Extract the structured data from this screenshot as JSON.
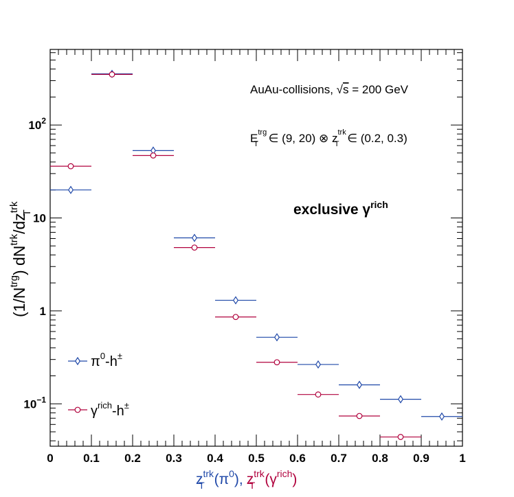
{
  "chart_data": {
    "type": "scatter",
    "xlim": [
      0,
      1
    ],
    "ylim": [
      0.035,
      650
    ],
    "y_log": true,
    "grid": false,
    "legend_position": "bottom-left",
    "x_ticks": [
      {
        "value": 0,
        "label": "0"
      },
      {
        "value": 0.1,
        "label": "0.1"
      },
      {
        "value": 0.2,
        "label": "0.2"
      },
      {
        "value": 0.3,
        "label": "0.3"
      },
      {
        "value": 0.4,
        "label": "0.4"
      },
      {
        "value": 0.5,
        "label": "0.5"
      },
      {
        "value": 0.6,
        "label": "0.6"
      },
      {
        "value": 0.7,
        "label": "0.7"
      },
      {
        "value": 0.8,
        "label": "0.8"
      },
      {
        "value": 0.9,
        "label": "0.9"
      },
      {
        "value": 1,
        "label": "1"
      }
    ],
    "y_ticks": [
      {
        "value": 0.1,
        "base": "10",
        "exp": "−1"
      },
      {
        "value": 1,
        "base": "1",
        "exp": ""
      },
      {
        "value": 10,
        "base": "10",
        "exp": ""
      },
      {
        "value": 100,
        "base": "10",
        "exp": "2"
      }
    ],
    "xlabel": {
      "part1_main": "z",
      "part1_sub": "T",
      "part1_sup": "trk",
      "part1_tail": "(π",
      "part1_tail_sup": "0",
      "part1_close": "),",
      "part2_main": "z",
      "part2_sub": "T",
      "part2_sup": "trk",
      "part2_tail": "(γ",
      "part2_tail_sup": "rich",
      "part2_close": ")"
    },
    "ylabel": {
      "t1": "(1/N",
      "s1": "trg",
      "t2": ") dN",
      "s2": "trk",
      "t3": "/dz",
      "sub3": "T",
      "s3": "trk"
    },
    "annotations": {
      "collision_prefix": "AuAu-collisions, ",
      "collision_root": "√",
      "collision_s": "s",
      "collision_suffix": " = 200 GeV",
      "selection_E": "E",
      "selection_E_sup": "trg",
      "selection_E_sub": "T",
      "selection_mid": " ∈ (9, 20) ⊗ z",
      "selection_z_sup": "trk",
      "selection_z_sub": "T",
      "selection_end": " ∈ (0.2, 0.3)",
      "exclusive_main": "exclusive γ",
      "exclusive_sup": "rich"
    },
    "series": [
      {
        "name": "π0-h±",
        "legend_main": "π",
        "legend_sup1": "0",
        "legend_mid": "-h",
        "legend_sup2": "±",
        "color": "#1f48a8",
        "marker": "diamond",
        "points": [
          {
            "x": 0.05,
            "y": 20
          },
          {
            "x": 0.15,
            "y": 355
          },
          {
            "x": 0.25,
            "y": 53
          },
          {
            "x": 0.35,
            "y": 6.1
          },
          {
            "x": 0.45,
            "y": 1.3
          },
          {
            "x": 0.55,
            "y": 0.52
          },
          {
            "x": 0.65,
            "y": 0.265
          },
          {
            "x": 0.75,
            "y": 0.16
          },
          {
            "x": 0.85,
            "y": 0.112
          },
          {
            "x": 0.95,
            "y": 0.073
          }
        ]
      },
      {
        "name": "γrich-h±",
        "legend_main": "γ",
        "legend_sup1": "rich",
        "legend_mid": "-h",
        "legend_sup2": "±",
        "color": "#b0003c",
        "marker": "circle",
        "points": [
          {
            "x": 0.05,
            "y": 36
          },
          {
            "x": 0.15,
            "y": 350
          },
          {
            "x": 0.25,
            "y": 47
          },
          {
            "x": 0.35,
            "y": 4.8
          },
          {
            "x": 0.45,
            "y": 0.86
          },
          {
            "x": 0.55,
            "y": 0.28
          },
          {
            "x": 0.65,
            "y": 0.126
          },
          {
            "x": 0.75,
            "y": 0.074
          },
          {
            "x": 0.85,
            "y": 0.044
          }
        ]
      }
    ]
  }
}
